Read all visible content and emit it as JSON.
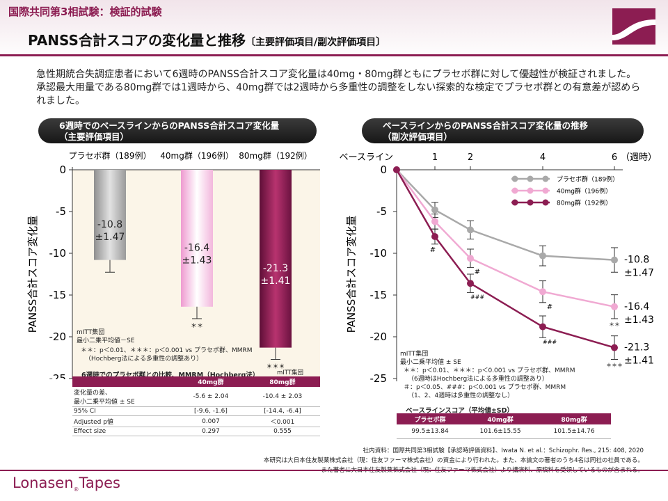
{
  "header": {
    "trial": "国際共同第3相試験：検証的試験",
    "title": "PANSS合計スコアの変化量と推移",
    "subtitle": "〔主要評価項目/副次評価項目〕"
  },
  "summary": "急性期統合失調症患者において6週時のPANSS合計スコア変化量は40mg・80mg群ともにプラセボ群に対して優越性が検証されました。承認最大用量である80mg群では1週時から、40mg群では2週時から多重性の調整をしない探索的な検定でプラセボ群との有意差が認められました。",
  "left_panel": {
    "title_line1": "6週時でのベースラインからのPANSS合計スコア変化量",
    "title_line2": "（主要評価項目）",
    "notes": [
      "mITT集団",
      "最小二乗平均値－SE",
      "＊＊：p＜0.01、＊＊＊：p＜0.001 vs プラセボ群、MMRM",
      "（Hochberg法による多重性の調整あり）"
    ],
    "stats_title": "6週時でのプラセボ群との比較、MMRM（Hochberg法）",
    "stats_population": "mITT集団",
    "stats_headers": [
      "",
      "40mg群",
      "80mg群"
    ],
    "stats_rows": [
      {
        "label1": "変化量の差、",
        "label2": "最小二乗平均値 ± SE",
        "v40": "-5.6 ± 2.04",
        "v80": "-10.4 ± 2.03"
      },
      {
        "label1": "95% CI",
        "label2": "",
        "v40": "[-9.6, -1.6]",
        "v80": "[-14.4, -6.4]"
      },
      {
        "label1": "Adjusted p値",
        "label2": "",
        "v40": "0.007",
        "v80": "＜0.001"
      },
      {
        "label1": "Effect size",
        "label2": "",
        "v40": "0.297",
        "v80": "0.555"
      }
    ]
  },
  "right_panel": {
    "title_line1": "ベースラインからのPANSS合計スコア変化量の推移",
    "title_line2": "（副次評価項目）",
    "notes": [
      "mITT集団",
      "最小二乗平均値 ± SE",
      "＊＊：p＜0.01、＊＊＊：p＜0.001 vs プラセボ群、MMRM",
      "（6週時はHochberg法による多重性の調整あり）",
      "＃：p＜0.05、###：p＜0.001 vs プラセボ群、MMRM",
      "（1、2、4週時は多重性の調整なし）"
    ],
    "baseline_title": "ベースラインスコア（平均値±SD）",
    "baseline_headers": [
      "プラセボ群",
      "40mg群",
      "80mg群"
    ],
    "baseline_values": [
      "99.5±13.84",
      "101.6±15.55",
      "101.5±14.76"
    ]
  },
  "chart_data": [
    {
      "type": "bar",
      "title": "6週時でのベースラインからのPANSS合計スコア変化量",
      "ylabel": "PANSS合計スコア変化量",
      "ylim": [
        -25,
        0
      ],
      "yticks": [
        0,
        -5,
        -10,
        -15,
        -20,
        -25
      ],
      "categories": [
        "プラセボ群（189例）",
        "40mg群（196例）",
        "80mg群（192例）"
      ],
      "values": [
        -10.8,
        -16.4,
        -21.3
      ],
      "se": [
        1.47,
        1.43,
        1.41
      ],
      "value_labels": [
        "-10.8",
        "-16.4",
        "-21.3"
      ],
      "se_labels": [
        "±1.47",
        "±1.43",
        "±1.41"
      ],
      "significance": [
        "",
        "＊＊",
        "＊＊＊"
      ],
      "colors": [
        "#a9a9a9",
        "#f0bfe0",
        "#8c1d52"
      ]
    },
    {
      "type": "line",
      "title": "ベースラインからのPANSS合計スコア変化量の推移",
      "ylabel": "PANSS合計スコア変化量",
      "ylim": [
        -25,
        0
      ],
      "yticks": [
        0,
        -5,
        -10,
        -15,
        -20,
        -25
      ],
      "x": [
        0,
        1,
        2,
        4,
        6
      ],
      "x_labels": [
        "ベースライン",
        "1",
        "2",
        "4",
        "6"
      ],
      "x_unit": "（週時）",
      "series": [
        {
          "name": "プラセボ群（189例）",
          "color": "#a9a9a9",
          "values": [
            0,
            -4.8,
            -7.2,
            -10.3,
            -10.8
          ],
          "se": [
            0,
            0.9,
            1.1,
            1.2,
            1.47
          ],
          "marks": [
            "",
            "",
            "",
            "",
            ""
          ]
        },
        {
          "name": "40mg群（196例）",
          "color": "#f0a9d2",
          "values": [
            0,
            -6.2,
            -10.6,
            -14.6,
            -16.4
          ],
          "se": [
            0,
            0.9,
            1.1,
            1.3,
            1.43
          ],
          "marks": [
            "",
            "",
            "#",
            "#",
            "＊＊"
          ]
        },
        {
          "name": "80mg群（192例）",
          "color": "#8c1d52",
          "values": [
            0,
            -8.0,
            -13.6,
            -18.8,
            -21.3
          ],
          "se": [
            0,
            0.9,
            1.1,
            1.3,
            1.41
          ],
          "marks": [
            "",
            "#",
            "###",
            "###",
            "＊＊＊"
          ]
        }
      ],
      "end_labels": [
        "-10.8",
        "±1.47",
        "-16.4",
        "±1.43",
        "-21.3",
        "±1.41"
      ]
    }
  ],
  "references": [
    "社内資料：国際共同第3相試験【承認時評価資料】、Iwata N. et al.：Schizophr. Res., 215: 408, 2020",
    "本研究は大日本住友製薬株式会社（現：住友ファーマ株式会社）の資金により行われた。また、本論文の著者のうち4名は同社の社員である。",
    "また著者に大日本住友製薬株式会社（現：住友ファーマ株式会社）より講演料、原稿料を受領しているものが含まれる。"
  ],
  "brand": {
    "name": "Lonasen",
    "reg": "®",
    "suffix": "Tapes"
  }
}
